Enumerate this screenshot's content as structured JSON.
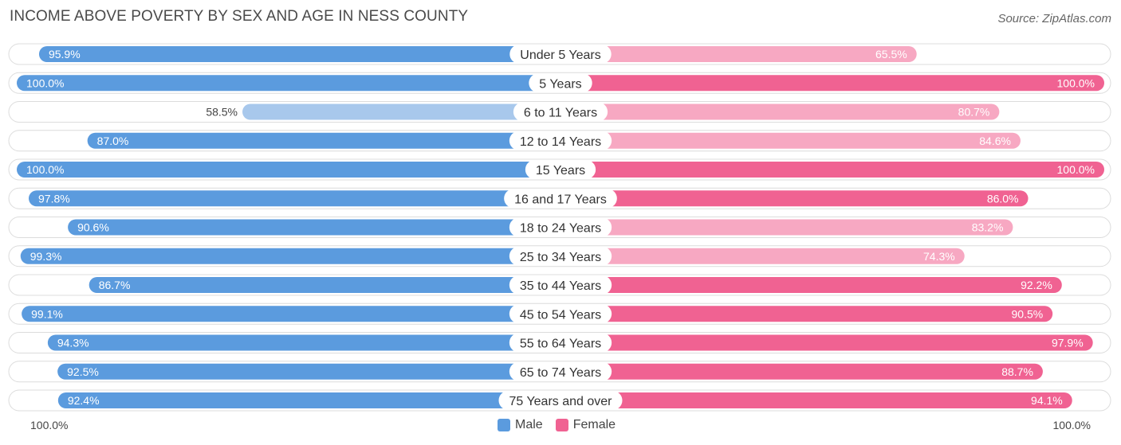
{
  "header": {
    "title": "INCOME ABOVE POVERTY BY SEX AND AGE IN NESS COUNTY",
    "source": "Source: ZipAtlas.com"
  },
  "axis": {
    "left_label": "100.0%",
    "right_label": "100.0%"
  },
  "legend": {
    "male_label": "Male",
    "female_label": "Female"
  },
  "colors": {
    "male_strong": "#5b9bde",
    "male_light": "#a8c8ec",
    "female_strong": "#f06292",
    "female_light": "#f7a8c2",
    "track": "#f1f1f1"
  },
  "chart_data": {
    "type": "bar",
    "orientation": "horizontal-diverging",
    "title": "INCOME ABOVE POVERTY BY SEX AND AGE IN NESS COUNTY",
    "xlim": [
      0,
      100
    ],
    "unit": "%",
    "categories": [
      "Under 5 Years",
      "5 Years",
      "6 to 11 Years",
      "12 to 14 Years",
      "15 Years",
      "16 and 17 Years",
      "18 to 24 Years",
      "25 to 34 Years",
      "35 to 44 Years",
      "45 to 54 Years",
      "55 to 64 Years",
      "65 to 74 Years",
      "75 Years and over"
    ],
    "series": [
      {
        "name": "Male",
        "values": [
          95.9,
          100.0,
          58.5,
          87.0,
          100.0,
          97.8,
          90.6,
          99.3,
          86.7,
          99.1,
          94.3,
          92.5,
          92.4
        ],
        "labels": [
          "95.9%",
          "100.0%",
          "58.5%",
          "87.0%",
          "100.0%",
          "97.8%",
          "90.6%",
          "99.3%",
          "86.7%",
          "99.1%",
          "94.3%",
          "92.5%",
          "92.4%"
        ]
      },
      {
        "name": "Female",
        "values": [
          65.5,
          100.0,
          80.7,
          84.6,
          100.0,
          86.0,
          83.2,
          74.3,
          92.2,
          90.5,
          97.9,
          88.7,
          94.1
        ],
        "labels": [
          "65.5%",
          "100.0%",
          "80.7%",
          "84.6%",
          "100.0%",
          "86.0%",
          "83.2%",
          "74.3%",
          "92.2%",
          "90.5%",
          "97.9%",
          "88.7%",
          "94.1%"
        ]
      }
    ]
  }
}
